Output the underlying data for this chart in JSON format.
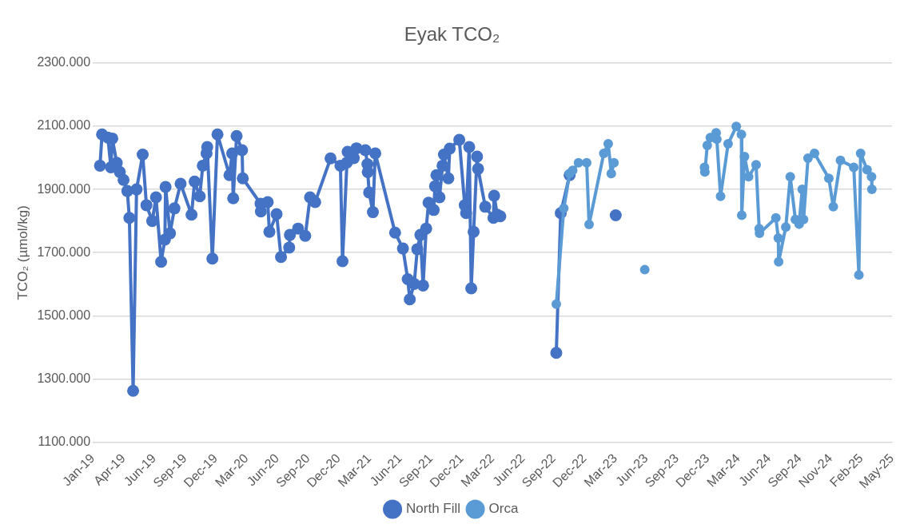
{
  "chart_data": {
    "type": "line",
    "title": "Eyak TCO₂",
    "ylabel": "TCO₂ (µmol/kg)",
    "marker": "circle",
    "line_style": "solid",
    "grid": "y",
    "legend": "bottom",
    "ylim": [
      1100,
      2300
    ],
    "yticks": [
      {
        "value": 1100,
        "label": "1100.000"
      },
      {
        "value": 1300,
        "label": "1300.000"
      },
      {
        "value": 1500,
        "label": "1500.000"
      },
      {
        "value": 1700,
        "label": "1700.000"
      },
      {
        "value": 1900,
        "label": "1900.000"
      },
      {
        "value": 2100,
        "label": "2100.000"
      },
      {
        "value": 2300,
        "label": "2300.000"
      }
    ],
    "xlim": [
      "2019-01-01",
      "2025-05-29"
    ],
    "xticks": [
      {
        "value": "2019-01-01",
        "label": "Jan-19"
      },
      {
        "value": "2019-04-01",
        "label": "Apr-19"
      },
      {
        "value": "2019-06-30",
        "label": "Jun-19"
      },
      {
        "value": "2019-09-28",
        "label": "Sep-19"
      },
      {
        "value": "2019-12-27",
        "label": "Dec-19"
      },
      {
        "value": "2020-03-26",
        "label": "Mar-20"
      },
      {
        "value": "2020-06-24",
        "label": "Jun-20"
      },
      {
        "value": "2020-09-22",
        "label": "Sep-20"
      },
      {
        "value": "2020-12-21",
        "label": "Dec-20"
      },
      {
        "value": "2021-03-21",
        "label": "Mar-21"
      },
      {
        "value": "2021-06-19",
        "label": "Jun-21"
      },
      {
        "value": "2021-09-17",
        "label": "Sep-21"
      },
      {
        "value": "2021-12-16",
        "label": "Dec-21"
      },
      {
        "value": "2022-03-16",
        "label": "Mar-22"
      },
      {
        "value": "2022-06-14",
        "label": "Jun-22"
      },
      {
        "value": "2022-09-12",
        "label": "Sep-22"
      },
      {
        "value": "2022-12-11",
        "label": "Dec-22"
      },
      {
        "value": "2023-03-11",
        "label": "Mar-23"
      },
      {
        "value": "2023-06-09",
        "label": "Jun-23"
      },
      {
        "value": "2023-09-07",
        "label": "Sep-23"
      },
      {
        "value": "2023-12-06",
        "label": "Dec-23"
      },
      {
        "value": "2024-03-05",
        "label": "Mar-24"
      },
      {
        "value": "2024-06-03",
        "label": "Jun-24"
      },
      {
        "value": "2024-09-01",
        "label": "Sep-24"
      },
      {
        "value": "2024-11-30",
        "label": "Nov-24"
      },
      {
        "value": "2025-02-28",
        "label": "Feb-25"
      },
      {
        "value": "2025-05-29",
        "label": "May-25"
      }
    ],
    "series": [
      {
        "name": "North Fill",
        "color": "#4472c4",
        "x": [
          "2019-01-22",
          "2019-01-28",
          "2019-02-14",
          "2019-02-23",
          "2019-02-27",
          "2019-03-12",
          "2019-03-21",
          "2019-04-01",
          "2019-04-12",
          "2019-04-18",
          "2019-04-29",
          "2019-05-09",
          "2019-05-27",
          "2019-06-07",
          "2019-06-24",
          "2019-07-05",
          "2019-07-20",
          "2019-07-31",
          "2019-08-02",
          "2019-08-15",
          "2019-08-28",
          "2019-09-15",
          "2019-10-17",
          "2019-10-26",
          "2019-11-10",
          "2019-11-19",
          "2019-11-30",
          "2019-12-02",
          "2019-12-17",
          "2020-01-01",
          "2020-02-05",
          "2020-02-13",
          "2020-02-16",
          "2020-02-26",
          "2020-03-13",
          "2020-03-15",
          "2020-05-06",
          "2020-05-07",
          "2020-05-27",
          "2020-06-01",
          "2020-06-22",
          "2020-07-05",
          "2020-07-29",
          "2020-07-31",
          "2020-08-24",
          "2020-09-14",
          "2020-09-28",
          "2020-10-13",
          "2020-11-27",
          "2020-12-26",
          "2021-01-01",
          "2021-01-14",
          "2021-01-16",
          "2021-02-03",
          "2021-02-11",
          "2021-03-09",
          "2021-03-15",
          "2021-03-16",
          "2021-03-20",
          "2021-03-31",
          "2021-04-07",
          "2021-06-04",
          "2021-06-27",
          "2021-07-11",
          "2021-07-17",
          "2021-07-30",
          "2021-08-08",
          "2021-08-17",
          "2021-08-25",
          "2021-09-03",
          "2021-09-10",
          "2021-09-25",
          "2021-09-29",
          "2021-10-03",
          "2021-10-12",
          "2021-10-21",
          "2021-10-25",
          "2021-11-07",
          "2021-11-11",
          "2021-12-09",
          "2021-12-25",
          "2021-12-29",
          "2022-01-07",
          "2022-01-13",
          "2022-01-20",
          "2022-01-30",
          "2022-02-02",
          "2022-02-23",
          "2022-03-19",
          "2022-03-21",
          "2022-03-30",
          "2022-04-08",
          "2022-06-01",
          "2022-09-19",
          "2022-10-02",
          "2022-10-28",
          "2023-01-01",
          "2023-03-12"
        ],
        "values": [
          1975,
          2074,
          2064,
          1970,
          2061,
          1984,
          1955,
          1930,
          1895,
          1810,
          1263,
          1900,
          2010,
          1850,
          1800,
          1875,
          1671,
          1741,
          1908,
          1761,
          1840,
          1918,
          1820,
          1925,
          1878,
          1975,
          2014,
          2034,
          1681,
          2074,
          1945,
          2014,
          1872,
          2069,
          2024,
          1935,
          1855,
          1830,
          1860,
          1766,
          1822,
          1686,
          1716,
          1756,
          1776,
          1753,
          1875,
          1860,
          1998,
          1975,
          1673,
          1985,
          2019,
          1999,
          2030,
          2024,
          1980,
          1955,
          1890,
          1828,
          2014,
          1763,
          1713,
          1616,
          1552,
          1601,
          1711,
          1756,
          1596,
          1776,
          1858,
          1835,
          1910,
          1945,
          1875,
          1975,
          2010,
          1935,
          2029,
          2057,
          1850,
          1825,
          2034,
          1587,
          1766,
          2004,
          1965,
          1845,
          1810,
          1880,
          1820,
          1815,
          null,
          1383,
          1825,
          1945,
          null,
          1818
        ]
      },
      {
        "name": "Orca",
        "color": "#5b9bd5",
        "x": [
          "2022-09-19",
          "2022-10-11",
          "2022-10-28",
          "2022-11-06",
          "2022-11-23",
          "2022-12-17",
          "2022-12-24",
          "2023-02-05",
          "2023-02-18",
          "2023-02-27",
          "2023-03-07",
          "2023-04-15",
          "2023-06-05",
          "2023-09-01",
          "2023-11-27",
          "2023-11-28",
          "2023-12-05",
          "2023-12-14",
          "2023-12-31",
          "2024-01-02",
          "2024-01-13",
          "2024-02-04",
          "2024-02-28",
          "2024-03-14",
          "2024-03-15",
          "2024-03-23",
          "2024-04-04",
          "2024-04-26",
          "2024-05-05",
          "2024-05-06",
          "2024-06-23",
          "2024-06-30",
          "2024-07-01",
          "2024-07-22",
          "2024-08-04",
          "2024-08-19",
          "2024-08-30",
          "2024-09-08",
          "2024-09-12",
          "2024-09-25",
          "2024-10-14",
          "2024-11-25",
          "2024-12-08",
          "2024-12-29",
          "2025-02-06",
          "2025-02-21",
          "2025-02-26",
          "2025-03-17",
          "2025-03-30",
          "2025-03-31"
        ],
        "values": [
          1537,
          1840,
          1950,
          1960,
          1984,
          1984,
          1789,
          2014,
          2044,
          1950,
          1984,
          null,
          1646,
          null,
          1970,
          1955,
          2039,
          2064,
          2079,
          2059,
          1878,
          2044,
          2099,
          2074,
          1818,
          2004,
          1940,
          1978,
          1776,
          1761,
          1810,
          1746,
          1671,
          1781,
          1940,
          1805,
          1790,
          1900,
          1805,
          1999,
          2014,
          1935,
          1845,
          1992,
          1970,
          1629,
          2014,
          1962,
          1940,
          1900
        ]
      }
    ]
  }
}
